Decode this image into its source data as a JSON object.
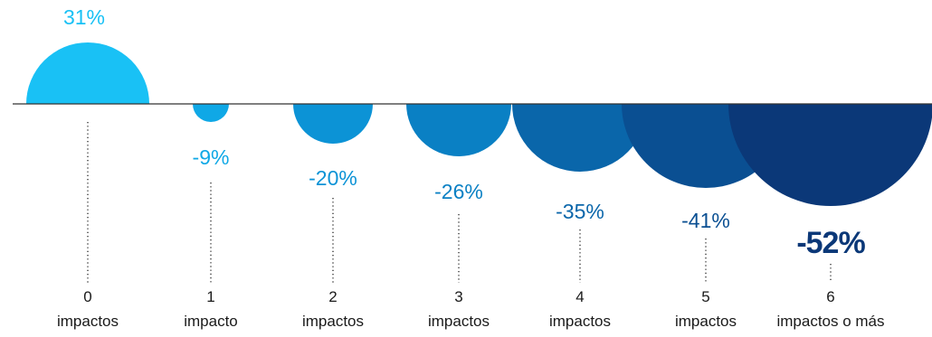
{
  "chart_data": {
    "type": "bubble",
    "baseline": 0,
    "categories": [
      {
        "number": "0",
        "label": "impactos"
      },
      {
        "number": "1",
        "label": "impacto"
      },
      {
        "number": "2",
        "label": "impactos"
      },
      {
        "number": "3",
        "label": "impactos"
      },
      {
        "number": "4",
        "label": "impactos"
      },
      {
        "number": "5",
        "label": "impactos"
      },
      {
        "number": "6",
        "label": "impactos o más"
      }
    ],
    "values": [
      31,
      -9,
      -20,
      -26,
      -35,
      -41,
      -52
    ],
    "value_labels": [
      "31%",
      "-9%",
      "-20%",
      "-26%",
      "-35%",
      "-41%",
      "-52%"
    ],
    "colors": [
      "#19c1f5",
      "#0fa8e6",
      "#0c93d6",
      "#0a80c4",
      "#0a66aa",
      "#0a4f92",
      "#0b3878"
    ]
  }
}
